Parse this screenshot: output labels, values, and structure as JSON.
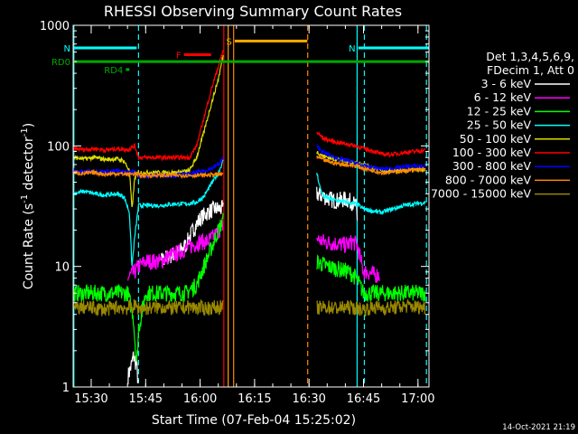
{
  "chart_data": {
    "type": "line",
    "title": "RHESSI Observing Summary Count Rates",
    "xlabel": "Start Time (07-Feb-04 15:25:02)",
    "ylabel_main": "Count Rate (s",
    "ylabel_sup1": "-1",
    "ylabel_mid": " detector",
    "ylabel_sup2": "-1",
    "ylabel_end": ")",
    "footer": "14-Oct-2021 21:19",
    "x_unit": "minutes after 15:25:02",
    "xlim": [
      0,
      98
    ],
    "ylim": [
      1,
      1000
    ],
    "y_scale": "log",
    "x_ticks": [
      {
        "v": 4.97,
        "label": "15:30"
      },
      {
        "v": 19.97,
        "label": "15:45"
      },
      {
        "v": 34.97,
        "label": "16:00"
      },
      {
        "v": 49.97,
        "label": "16:15"
      },
      {
        "v": 64.97,
        "label": "16:30"
      },
      {
        "v": 79.97,
        "label": "16:45"
      },
      {
        "v": 94.97,
        "label": "17:00"
      }
    ],
    "y_ticks": [
      {
        "v": 1,
        "label": "1"
      },
      {
        "v": 10,
        "label": "10"
      },
      {
        "v": 100,
        "label": "100"
      },
      {
        "v": 1000,
        "label": "1000"
      }
    ],
    "legend": {
      "header1": "Det 1,3,4,5,6,9,",
      "header2": "FDecim 1, Att 0",
      "placement": "right"
    },
    "flags": [
      {
        "label": "N",
        "color": "#00ffff",
        "x": [
          0,
          17.5
        ],
        "y": 650
      },
      {
        "label": "N",
        "color": "#00ffff",
        "x": [
          78.5,
          98
        ],
        "y": 650
      },
      {
        "label": "RD0",
        "color": "#00aa00",
        "x": [
          0,
          98
        ],
        "y": 500
      },
      {
        "label": "RD4",
        "color": "#00aa00",
        "x": [
          14.5,
          15.5
        ],
        "y": 430
      },
      {
        "label": "F",
        "color": "#ff0000",
        "x": [
          30.5,
          38
        ],
        "y": 570
      },
      {
        "label": "S",
        "color": "#ffaa00",
        "x": [
          44.5,
          64.5
        ],
        "y": 740
      }
    ],
    "vlines": [
      {
        "x": 0.2,
        "color": "#00ffff",
        "style": "solid"
      },
      {
        "x": 18.0,
        "color": "#00ffff",
        "style": "dashed"
      },
      {
        "x": 41.5,
        "color": "#ff0000",
        "style": "solid"
      },
      {
        "x": 42.7,
        "color": "#ffaa00",
        "style": "solid"
      },
      {
        "x": 44.2,
        "color": "#ff8800",
        "style": "solid"
      },
      {
        "x": 64.6,
        "color": "#ff8800",
        "style": "dashed"
      },
      {
        "x": 78.2,
        "color": "#00ffff",
        "style": "solid"
      },
      {
        "x": 80.2,
        "color": "#00ffff",
        "style": "dashed"
      },
      {
        "x": 97.3,
        "color": "#00ffff",
        "style": "dashed"
      }
    ],
    "series": [
      {
        "name": "3 - 6 keV",
        "color": "#ffffff",
        "x": [
          0,
          10,
          13,
          15,
          16,
          16.6,
          17.5,
          18,
          18.5,
          19,
          20,
          24,
          26,
          29,
          31,
          33,
          35,
          37,
          39,
          41.3,
          67,
          69,
          72,
          75,
          77,
          78,
          78.3,
          79,
          82,
          85,
          88,
          91,
          94,
          97
        ],
        "values": [
          null,
          null,
          null,
          1.2,
          1.5,
          1.8,
          1.5,
          1.0,
          null,
          null,
          null,
          11,
          12,
          13,
          15,
          20,
          25,
          28,
          30,
          30,
          40,
          38,
          35,
          36,
          34,
          31,
          22,
          null,
          null,
          null,
          null,
          null,
          null,
          null
        ]
      },
      {
        "name": "6 - 12 keV",
        "color": "#ff00ff",
        "x": [
          10,
          12,
          14,
          15,
          16,
          17,
          17.5,
          18,
          20,
          24,
          26,
          29,
          31,
          33,
          35,
          37,
          39,
          41.3,
          67,
          69,
          72,
          75,
          77,
          78.2,
          80,
          81,
          83,
          84.5,
          86,
          88,
          90,
          93,
          95,
          97
        ],
        "values": [
          null,
          null,
          null,
          8,
          8.5,
          9,
          9.5,
          10,
          11,
          11,
          12,
          13,
          14,
          15,
          16,
          16,
          18,
          22,
          17,
          16,
          15.5,
          15,
          16,
          15,
          9,
          9,
          8.5,
          8.5,
          null,
          null,
          null,
          null,
          null,
          null
        ]
      },
      {
        "name": "12 - 25 keV",
        "color": "#00ff00",
        "x": [
          0,
          3,
          6,
          9,
          12,
          15,
          16.5,
          17,
          17.5,
          18,
          20,
          24,
          28,
          31,
          34,
          36,
          38,
          40,
          41.3,
          67,
          70,
          73,
          76,
          78,
          80,
          82,
          84,
          86,
          88,
          90,
          93,
          95,
          97
        ],
        "values": [
          6,
          6,
          6,
          6,
          6,
          6,
          4,
          2.5,
          1.5,
          3,
          6,
          6,
          6,
          6,
          7,
          10,
          14,
          20,
          24,
          11,
          10,
          9.5,
          9,
          8,
          6,
          6,
          6,
          6,
          6,
          6,
          6,
          6,
          6
        ]
      },
      {
        "name": "25 - 50 keV",
        "color": "#00ffff",
        "x": [
          0,
          3,
          6,
          9,
          12,
          14,
          15.5,
          16.2,
          17,
          18,
          20,
          24,
          28,
          31,
          34,
          36,
          38,
          40,
          41.3,
          67,
          68,
          69,
          71,
          73,
          75,
          78,
          80,
          82,
          85,
          88,
          91,
          94,
          97
        ],
        "values": [
          40,
          42,
          40,
          39,
          40,
          38,
          28,
          10,
          18,
          32,
          32,
          32,
          33,
          33,
          34,
          38,
          48,
          60,
          75,
          62,
          45,
          38,
          36,
          35,
          34,
          33,
          30,
          29,
          28,
          30,
          32,
          33,
          34
        ]
      },
      {
        "name": "50 - 100 keV",
        "color": "#dddd00",
        "x": [
          0,
          3,
          6,
          9,
          12,
          14,
          15.5,
          16.2,
          17,
          18,
          20,
          24,
          28,
          32,
          34,
          36,
          38,
          40,
          41.3,
          67,
          69,
          72,
          76,
          80,
          83,
          85,
          88,
          91,
          94,
          97
        ],
        "values": [
          80,
          78,
          80,
          77,
          78,
          75,
          62,
          30,
          55,
          60,
          60,
          60,
          60,
          62,
          80,
          130,
          220,
          360,
          560,
          90,
          82,
          78,
          74,
          70,
          65,
          62,
          62,
          62,
          63,
          63
        ]
      },
      {
        "name": "100 - 300 keV",
        "color": "#ff0000",
        "x": [
          0,
          3,
          6,
          9,
          12,
          15,
          17,
          18,
          20,
          24,
          28,
          32,
          34,
          36,
          38,
          40,
          41.3,
          67,
          69,
          72,
          75,
          78,
          80,
          83,
          85,
          88,
          91,
          94,
          97
        ],
        "values": [
          95,
          93,
          95,
          92,
          95,
          93,
          100,
          80,
          80,
          80,
          80,
          80,
          100,
          170,
          290,
          460,
          620,
          130,
          115,
          108,
          104,
          100,
          95,
          90,
          85,
          85,
          88,
          90,
          92
        ]
      },
      {
        "name": "300 - 800 keV",
        "color": "#0000ff",
        "x": [
          0,
          3,
          6,
          9,
          12,
          15,
          17,
          18,
          20,
          24,
          28,
          32,
          34,
          36,
          38,
          40,
          41.3,
          67,
          69,
          72,
          75,
          78,
          80,
          83,
          85,
          88,
          91,
          94,
          97
        ],
        "values": [
          62,
          61,
          62,
          61,
          62,
          60,
          63,
          56,
          56,
          57,
          57,
          58,
          60,
          62,
          65,
          70,
          80,
          100,
          88,
          80,
          76,
          72,
          68,
          66,
          64,
          65,
          67,
          68,
          68
        ]
      },
      {
        "name": "800 - 7000 keV",
        "color": "#ff8800",
        "x": [
          0,
          3,
          6,
          9,
          12,
          15,
          17,
          18,
          20,
          24,
          28,
          32,
          36,
          40,
          41.3,
          67,
          69,
          72,
          75,
          78,
          80,
          83,
          85,
          88,
          91,
          94,
          97
        ],
        "values": [
          60,
          59,
          60,
          58,
          59,
          58,
          59,
          57,
          57,
          57,
          57,
          57,
          57,
          58,
          58,
          82,
          76,
          72,
          70,
          68,
          65,
          62,
          60,
          61,
          62,
          63,
          64
        ]
      },
      {
        "name": "7000 - 15000 keV",
        "color": "#998800",
        "x": [
          0,
          3,
          6,
          9,
          12,
          15,
          17,
          18,
          20,
          24,
          28,
          32,
          36,
          40,
          41.3,
          67,
          70,
          73,
          76,
          78,
          80,
          83,
          86,
          89,
          92,
          95,
          97
        ],
        "values": [
          4.5,
          4.6,
          4.5,
          4.4,
          4.6,
          4.5,
          4.7,
          4.5,
          4.5,
          4.6,
          4.5,
          4.6,
          4.5,
          4.6,
          4.6,
          4.5,
          4.6,
          4.5,
          4.6,
          4.5,
          4.4,
          4.6,
          4.5,
          4.6,
          4.7,
          4.6,
          4.6
        ]
      }
    ]
  }
}
